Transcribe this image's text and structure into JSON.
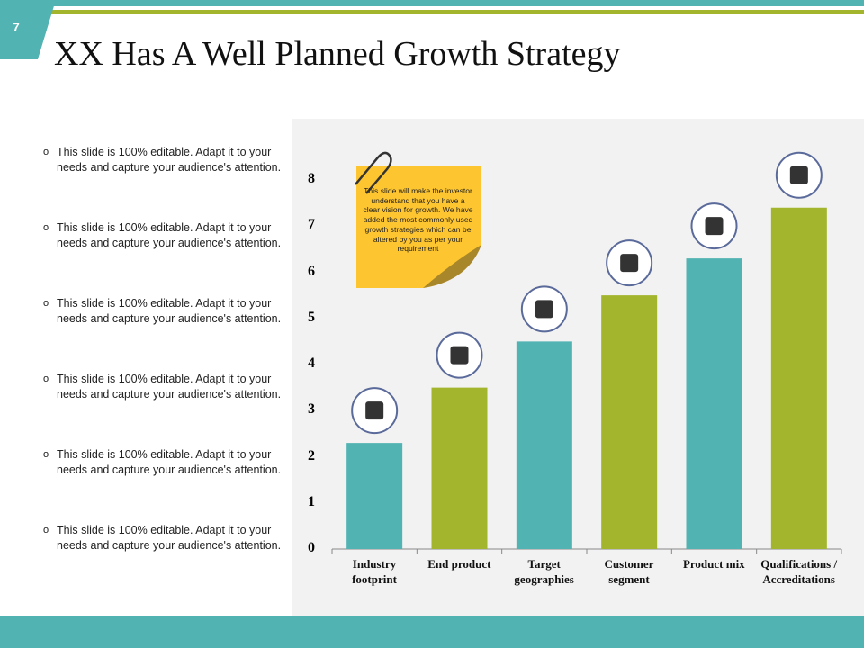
{
  "slide_number": "7",
  "bullets": [
    "This slide is 100% editable. Adapt it to your needs and capture your audience's attention.",
    "This slide is 100% editable. Adapt it to your needs and capture your audience's attention.",
    "This slide is 100% editable. Adapt it to your needs and capture your audience's attention.",
    "This slide is 100% editable. Adapt it to your needs and capture your audience's attention.",
    "This slide is 100% editable. Adapt it to your needs and capture your audience's attention.",
    "This slide is 100% editable. Adapt it to your needs and capture your audience's attention."
  ],
  "note": "This slide will make the investor understand that you have a clear vision for growth. We have added the most commonly used growth strategies which can be altered by you as per your requirement",
  "chart_data": {
    "type": "bar",
    "title": "XX Has A Well Planned Growth Strategy",
    "categories": [
      "Industry footprint",
      "End product",
      "Target geographies",
      "Customer segment",
      "Product mix",
      "Qualifications / Accreditations"
    ],
    "values": [
      2.3,
      3.5,
      4.5,
      5.5,
      6.3,
      7.4
    ],
    "colors": [
      "#52b3b3",
      "#a3b52d",
      "#52b3b3",
      "#a3b52d",
      "#52b3b3",
      "#a3b52d"
    ],
    "ylim": [
      0,
      8
    ],
    "yticks": [
      0,
      1,
      2,
      3,
      4,
      5,
      6,
      7,
      8
    ]
  }
}
